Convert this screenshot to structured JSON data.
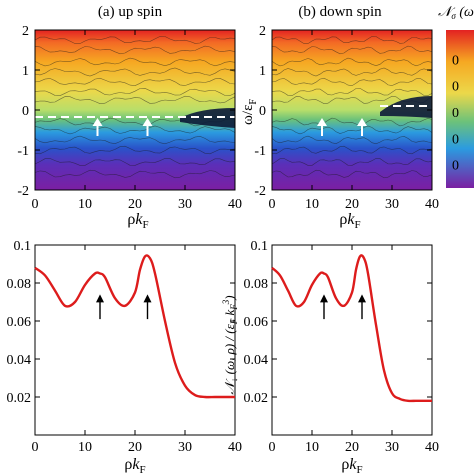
{
  "chart_data": [
    {
      "type": "heatmap",
      "title": "(a) up spin",
      "xlabel": "ρk_F",
      "ylabel": "",
      "xlim": [
        0,
        40
      ],
      "ylim": [
        -2,
        2
      ],
      "xticks": [
        "0",
        "10",
        "20",
        "30",
        "40"
      ],
      "yticks": [
        "2",
        "1",
        "0",
        "-1",
        "-2"
      ],
      "arrows_x": [
        12.5,
        22.5
      ],
      "arrows_y": -0.55
    },
    {
      "type": "heatmap",
      "title": "(b) down spin",
      "xlabel": "ρk_F",
      "ylabel": "ω/ε_F",
      "xlim": [
        0,
        40
      ],
      "ylim": [
        -2,
        2
      ],
      "xticks": [
        "0",
        "10",
        "20",
        "30",
        "40"
      ],
      "yticks": [
        "2",
        "1",
        "0",
        "-1",
        "-2"
      ],
      "arrows_x": [
        12.5,
        22.5
      ],
      "arrows_y": -0.55
    },
    {
      "type": "line",
      "title": "",
      "xlabel": "ρk_F",
      "ylabel": "",
      "xlim": [
        0,
        40
      ],
      "ylim": [
        0,
        0.1
      ],
      "xticks": [
        "0",
        "10",
        "20",
        "30",
        "40"
      ],
      "yticks": [
        "0.1",
        "0.08",
        "0.06",
        "0.04",
        "0.02",
        "0"
      ],
      "x": [
        0,
        2,
        4,
        6,
        8,
        10,
        12,
        13,
        14,
        16,
        18,
        20,
        21,
        22,
        23,
        24,
        26,
        28,
        30,
        32,
        34,
        36,
        38,
        40
      ],
      "y": [
        0.088,
        0.084,
        0.076,
        0.068,
        0.07,
        0.079,
        0.085,
        0.085,
        0.083,
        0.072,
        0.068,
        0.075,
        0.087,
        0.094,
        0.093,
        0.085,
        0.06,
        0.038,
        0.026,
        0.021,
        0.02,
        0.02,
        0.02,
        0.02
      ],
      "arrows_x": [
        13,
        22.5
      ],
      "color": "#dd1c1c"
    },
    {
      "type": "line",
      "title": "",
      "xlabel": "ρk_F",
      "ylabel": "N↓(ω,ρ) / (ε_F k_F³)",
      "xlim": [
        0,
        40
      ],
      "ylim": [
        0,
        0.1
      ],
      "xticks": [
        "0",
        "10",
        "20",
        "30",
        "40"
      ],
      "yticks": [
        "0.1",
        "0.08",
        "0.06",
        "0.04",
        "0.02",
        "0"
      ],
      "x": [
        0,
        2,
        4,
        6,
        8,
        10,
        12,
        13,
        14,
        16,
        18,
        20,
        21,
        22,
        23,
        24,
        26,
        28,
        30,
        32,
        34,
        36,
        38,
        40
      ],
      "y": [
        0.088,
        0.084,
        0.076,
        0.068,
        0.07,
        0.079,
        0.085,
        0.085,
        0.083,
        0.072,
        0.068,
        0.075,
        0.087,
        0.094,
        0.093,
        0.085,
        0.058,
        0.034,
        0.022,
        0.019,
        0.018,
        0.018,
        0.018,
        0.018
      ],
      "arrows_x": [
        13,
        22.5
      ],
      "color": "#dd1c1c"
    }
  ],
  "colorbar": {
    "label": "N_σ(ω,ρ) /",
    "tick_prefix": "0",
    "ticks": 5,
    "colors": [
      "#e32222",
      "#f6a822",
      "#ecd84a",
      "#6cc27a",
      "#2b9be0",
      "#7b1fa2"
    ]
  }
}
